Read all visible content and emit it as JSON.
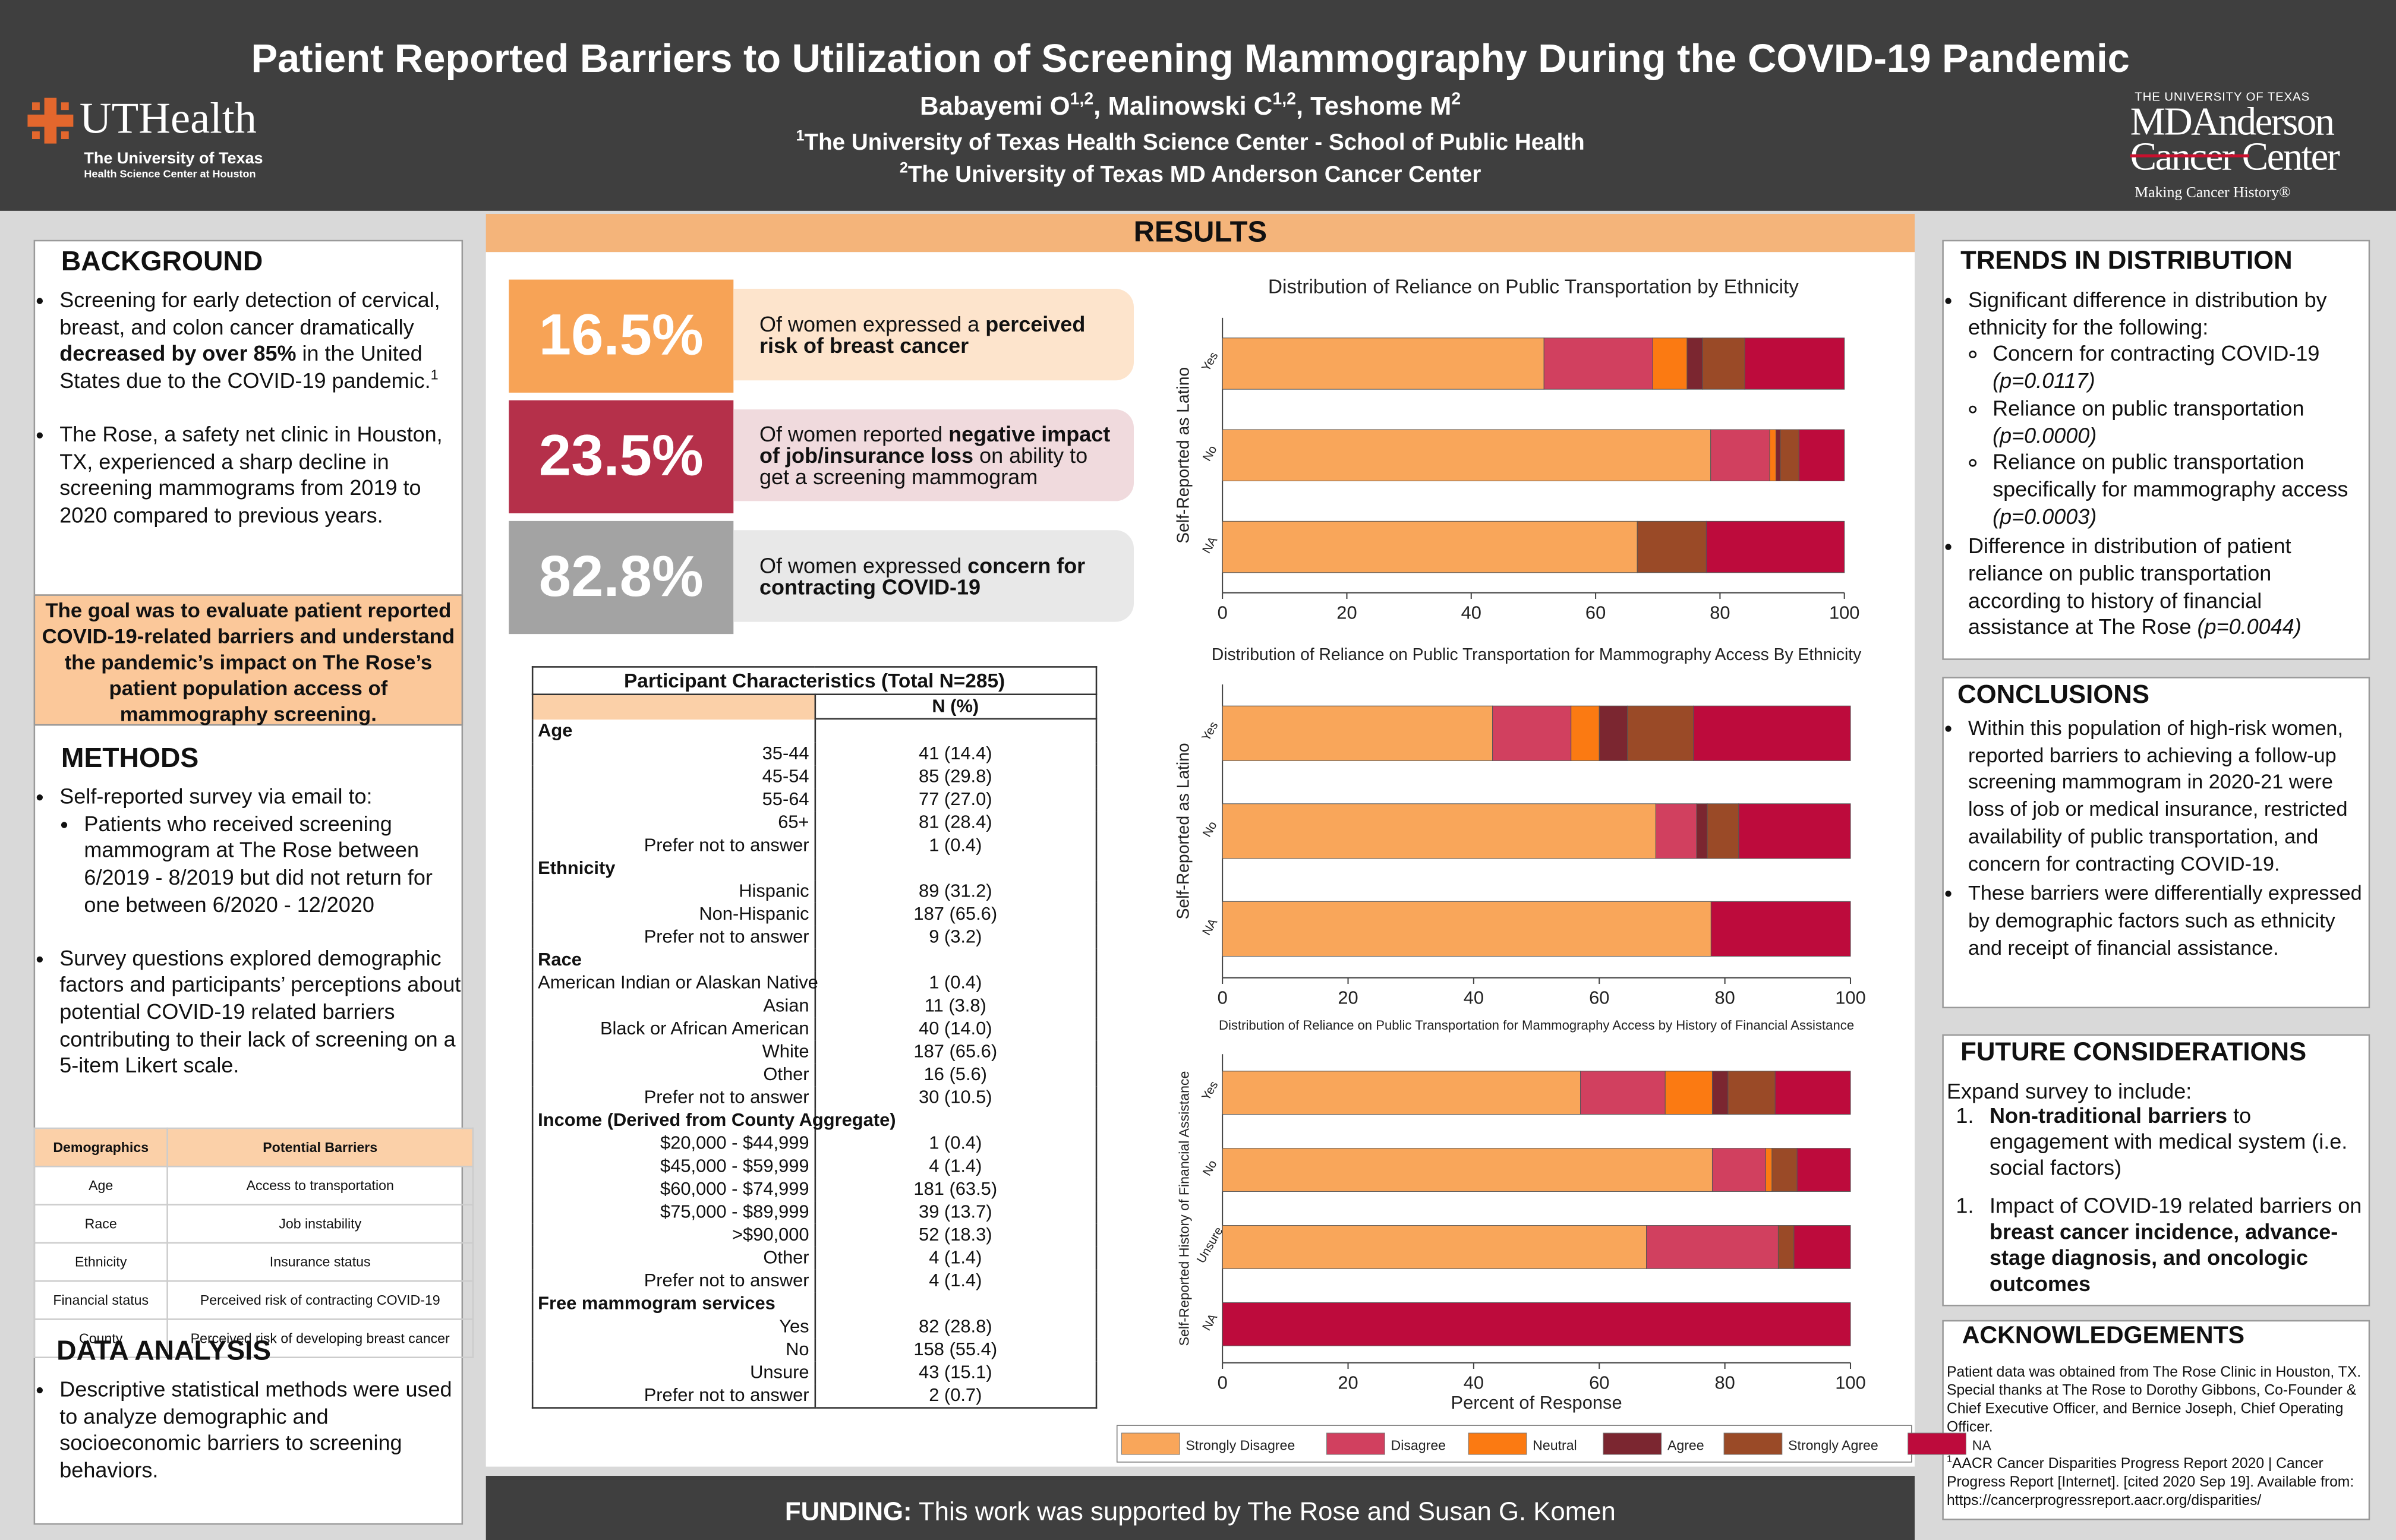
{
  "header": {
    "title": "Patient Reported Barriers to Utilization of Screening Mammography During the COVID-19 Pandemic",
    "authors": [
      "Babayemi O",
      {
        "sup": "1,2"
      },
      ", Malinowski C",
      {
        "sup": "1,2"
      },
      ", Teshome M",
      {
        "sup": "2"
      }
    ],
    "affiliations": [
      [
        {
          "sup": "1"
        },
        "The University of Texas Health Science Center - School of Public Health"
      ],
      [
        {
          "sup": "2"
        },
        "The University of Texas MD Anderson Cancer Center"
      ]
    ],
    "left_logo": {
      "name": "UTHealth",
      "line1": "The University of Texas",
      "line2": "Health Science Center at Houston"
    },
    "right_logo": {
      "top": "THE UNIVERSITY OF TEXAS",
      "line1": "MDAnderson",
      "line2": "Cancer Center",
      "tagline": "Making Cancer History®"
    }
  },
  "background": {
    "heading": "BACKGROUND",
    "items": [
      {
        "text": [
          "Screening for early detection of cervical, breast, and colon cancer dramatically ",
          {
            "b": "decreased by over 85%"
          },
          " in the United States due to the COVID-19 pandemic.",
          {
            "sup": "1"
          }
        ]
      },
      {
        "text": [
          "The Rose,  a safety net clinic in Houston, TX, experienced a sharp decline in screening mammograms from 2019 to 2020 compared to previous years."
        ]
      }
    ],
    "goal": "The goal was to evaluate patient reported COVID-19-related barriers and understand the pandemic’s impact on The Rose’s patient population access of mammography screening."
  },
  "methods": {
    "heading": "METHODS",
    "items": [
      {
        "text": [
          "Self-reported survey via email to:"
        ],
        "sub": [
          [
            "Patients who received screening mammogram at The Rose between 6/2019 - 8/2019 but did not return for one between 6/2020 - 12/2020"
          ]
        ]
      },
      {
        "text": [
          "Survey questions explored demographic factors and participants’ perceptions about potential COVID-19 related barriers contributing to their lack of screening on a 5-item Likert scale."
        ]
      }
    ],
    "table": {
      "header": [
        "Demographics",
        "Potential Barriers"
      ],
      "rows": [
        [
          "Age",
          "Access to transportation"
        ],
        [
          "Race",
          "Job instability"
        ],
        [
          "Ethnicity",
          "Insurance status"
        ],
        [
          "Financial status",
          "Perceived risk of contracting COVID-19"
        ],
        [
          "County",
          "Perceived risk of developing breast cancer"
        ]
      ]
    }
  },
  "data_analysis": {
    "heading": "DATA ANALYSIS",
    "items": [
      {
        "text": [
          "Descriptive statistical methods were used to analyze demographic and socioeconomic barriers to screening behaviors."
        ]
      }
    ]
  },
  "results": {
    "heading": "RESULTS",
    "stats": [
      {
        "value": "16.5%",
        "text": [
          "Of women expressed a ",
          {
            "b": "perceived risk of breast cancer"
          }
        ]
      },
      {
        "value": "23.5%",
        "text": [
          "Of women reported ",
          {
            "b": "negative impact of job/insurance loss"
          },
          " on ability to get a screening mammogram"
        ]
      },
      {
        "value": "82.8%",
        "text": [
          "Of women expressed ",
          {
            "b": "concern for contracting COVID-19"
          }
        ]
      }
    ],
    "table": {
      "title": "Participant Characteristics (Total N=285)",
      "column": "N (%)",
      "sections": [
        {
          "heading": "Age",
          "rows": [
            [
              "35-44",
              "41 (14.4)"
            ],
            [
              "45-54",
              "85 (29.8)"
            ],
            [
              "55-64",
              "77 (27.0)"
            ],
            [
              "65+",
              "81 (28.4)"
            ],
            [
              "Prefer not to answer",
              "1 (0.4)"
            ]
          ]
        },
        {
          "heading": "Ethnicity",
          "rows": [
            [
              "Hispanic",
              "89 (31.2)"
            ],
            [
              "Non-Hispanic",
              "187 (65.6)"
            ],
            [
              "Prefer not to answer",
              "9 (3.2)"
            ]
          ]
        },
        {
          "heading": "Race",
          "rows": [
            [
              "American Indian or Alaskan Native",
              "1 (0.4)"
            ],
            [
              "Asian",
              "11 (3.8)"
            ],
            [
              "Black or African American",
              "40 (14.0)"
            ],
            [
              "White",
              "187 (65.6)"
            ],
            [
              "Other",
              "16 (5.6)"
            ],
            [
              "Prefer not to answer",
              "30 (10.5)"
            ]
          ]
        },
        {
          "heading": "Income (Derived from County Aggregate)",
          "rows": [
            [
              "$20,000 - $44,999",
              "1 (0.4)"
            ],
            [
              "$45,000 - $59,999",
              "4 (1.4)"
            ],
            [
              "$60,000 - $74,999",
              "181 (63.5)"
            ],
            [
              "$75,000 - $89,999",
              "39 (13.7)"
            ],
            [
              ">$90,000",
              "52 (18.3)"
            ],
            [
              "Other",
              "4 (1.4)"
            ],
            [
              "Prefer not to answer",
              "4 (1.4)"
            ]
          ]
        },
        {
          "heading": "Free mammogram services",
          "rows": [
            [
              "Yes",
              "82 (28.8)"
            ],
            [
              "No",
              "158 (55.4)"
            ],
            [
              "Unsure",
              "43 (15.1)"
            ],
            [
              "Prefer not to answer",
              "2 (0.7)"
            ]
          ]
        }
      ]
    }
  },
  "chart_data": [
    {
      "type": "stacked_barh",
      "title": "Distribution of Reliance on Public Transportation by Ethnicity",
      "ylabel": "Self-Reported as Latino",
      "categories": [
        "Yes",
        "No",
        "NA"
      ],
      "series": [
        {
          "values": [
            51.7,
            78.5,
            66.7
          ]
        },
        {
          "values": [
            17.5,
            9.5,
            0
          ]
        },
        {
          "values": [
            5.5,
            1,
            0
          ]
        },
        {
          "values": [
            2.5,
            0.7,
            0
          ]
        },
        {
          "values": [
            6.8,
            3,
            11.1
          ]
        },
        {
          "values": [
            16,
            7.3,
            22.2
          ]
        }
      ],
      "xlim": [
        0,
        100
      ],
      "xticks": [
        0,
        20,
        40,
        60,
        80,
        100
      ]
    },
    {
      "type": "stacked_barh",
      "title": "Distribution of Reliance on Public Transportation for Mammography Access By Ethnicity",
      "ylabel": "Self-Reported as Latino",
      "categories": [
        "Yes",
        "No",
        "NA"
      ],
      "series": [
        {
          "values": [
            43,
            69,
            77.8
          ]
        },
        {
          "values": [
            12.5,
            6.5,
            0
          ]
        },
        {
          "values": [
            4.5,
            0,
            0
          ]
        },
        {
          "values": [
            4.5,
            1.7,
            0
          ]
        },
        {
          "values": [
            10.5,
            5,
            0
          ]
        },
        {
          "values": [
            25,
            17.8,
            22.2
          ]
        }
      ],
      "xlim": [
        0,
        100
      ],
      "xticks": [
        0,
        20,
        40,
        60,
        80,
        100
      ]
    },
    {
      "type": "stacked_barh",
      "title": "Distribution of Reliance on Public Transportation for Mammography Access by History of Financial Assistance",
      "ylabel": "Self-Reported History of Financial Assistance",
      "xlabel": "Percent of Response",
      "categories": [
        "Yes",
        "No",
        "Unsure",
        "NA"
      ],
      "series": [
        {
          "values": [
            57,
            78,
            67.5,
            0
          ]
        },
        {
          "values": [
            13.5,
            8.5,
            21,
            0
          ]
        },
        {
          "values": [
            7.5,
            1,
            0,
            0
          ]
        },
        {
          "values": [
            2.5,
            0,
            0,
            0
          ]
        },
        {
          "values": [
            7.5,
            4,
            2.5,
            0
          ]
        },
        {
          "values": [
            12,
            8.5,
            9,
            100
          ]
        }
      ],
      "xlim": [
        0,
        100
      ],
      "xticks": [
        0,
        20,
        40,
        60,
        80,
        100
      ]
    }
  ],
  "legend": [
    {
      "name": "Strongly Disagree",
      "color": "#f9a65a"
    },
    {
      "name": "Disagree",
      "color": "#d1405f"
    },
    {
      "name": "Neutral",
      "color": "#fb7a12"
    },
    {
      "name": "Agree",
      "color": "#7b2630"
    },
    {
      "name": "Strongly Agree",
      "color": "#9a4a27"
    },
    {
      "name": "NA",
      "color": "#bd0b3c"
    }
  ],
  "trends": {
    "heading": "TRENDS IN DISTRIBUTION",
    "items": [
      {
        "text": [
          "Significant difference in distribution by ethnicity for the following:"
        ],
        "sub": [
          [
            "Concern for contracting COVID-19 ",
            {
              "i": "(p=0.0117)"
            }
          ],
          [
            "Reliance on public transportation ",
            {
              "i": "(p=0.0000)"
            }
          ],
          [
            "Reliance on public transportation specifically for mammography access ",
            {
              "i": "(p=0.0003)"
            }
          ]
        ]
      },
      {
        "text": [
          "Difference in distribution of patient reliance on public transportation according to history of financial assistance at The Rose ",
          {
            "i": "(p=0.0044)"
          }
        ]
      }
    ]
  },
  "conclusions": {
    "heading": "CONCLUSIONS",
    "items": [
      {
        "text": [
          "Within this population of high-risk women, reported barriers to achieving a follow-up screening mammogram in 2020-21 were loss of job or medical insurance, restricted availability of public transportation, and concern for contracting COVID-19."
        ]
      },
      {
        "text": [
          "These barriers were differentially expressed by demographic factors such as ethnicity and receipt of financial assistance."
        ]
      }
    ]
  },
  "future": {
    "heading": "FUTURE CONSIDERATIONS",
    "intro": "Expand survey to include:",
    "items": [
      {
        "marker": "1.",
        "text": [
          {
            "b": "Non-traditional barriers"
          },
          " to engagement with medical system (i.e. social factors)"
        ]
      },
      {
        "marker": "1.",
        "text": [
          "Impact of COVID-19 related barriers on ",
          {
            "b": "breast cancer incidence, advance-stage diagnosis, and oncologic outcomes"
          }
        ]
      }
    ]
  },
  "acknowledgements": {
    "heading": "ACKNOWLEDGEMENTS",
    "paragraphs": [
      [
        "Patient data was obtained from The Rose Clinic in Houston, TX. Special thanks at The Rose to Dorothy Gibbons, Co-Founder & Chief Executive Officer, and Bernice Joseph, Chief Operating Officer."
      ],
      [
        {
          "sup": "1"
        },
        "AACR Cancer Disparities Progress Report 2020 | Cancer Progress Report [Internet]. [cited 2020 Sep 19]. Available from: https://cancerprogressreport.aacr.org/disparities/"
      ]
    ]
  },
  "funding": [
    {
      "b": "FUNDING:"
    },
    " This work was supported by The Rose and Susan G. Komen"
  ]
}
